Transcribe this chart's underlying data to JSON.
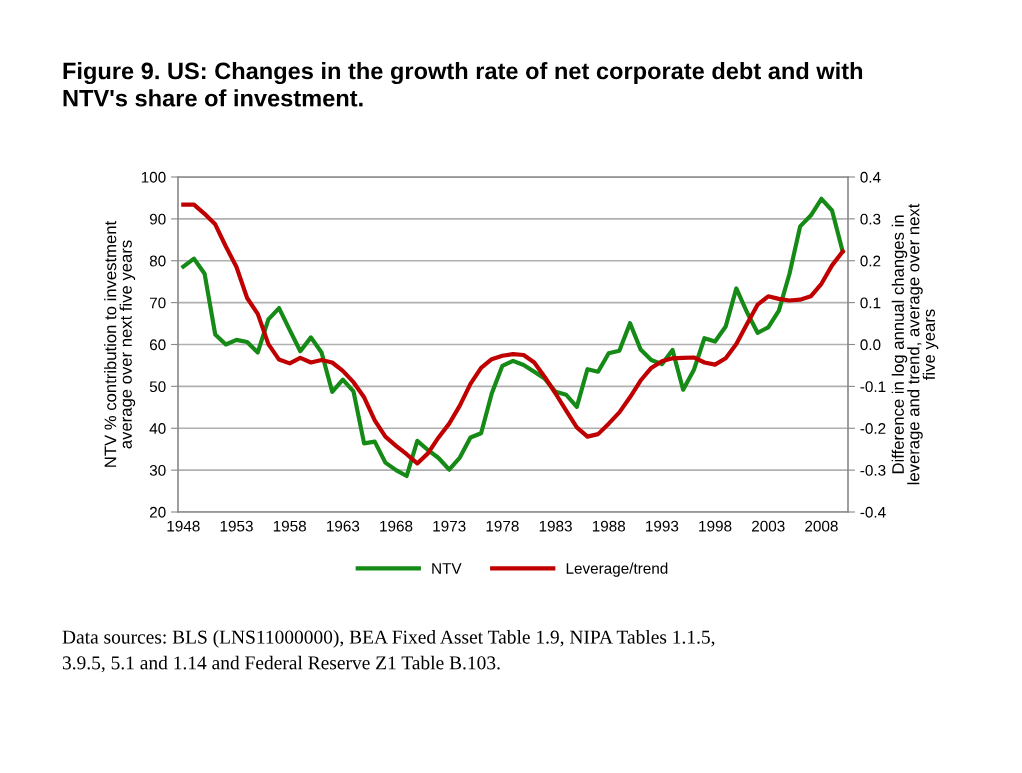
{
  "chart_data": {
    "type": "line",
    "title": "Figure 9. US: Changes in the growth rate of net corporate debt and with\nNTV's share of investment.",
    "ylabel": "NTV % contribution to investment\naverage over next five years",
    "y2label": "Difference in log annual changes in\nleverage and trend, average over next\nfive years",
    "categories": [
      "1948",
      null,
      null,
      null,
      null,
      "1953",
      null,
      null,
      null,
      null,
      "1958",
      null,
      null,
      null,
      null,
      "1963",
      null,
      null,
      null,
      null,
      "1968",
      null,
      null,
      null,
      null,
      "1973",
      null,
      null,
      null,
      null,
      "1978",
      null,
      null,
      null,
      null,
      "1983",
      null,
      null,
      null,
      null,
      "1988",
      null,
      null,
      null,
      null,
      "1993",
      null,
      null,
      null,
      null,
      "1998",
      null,
      null,
      null,
      null,
      "2003",
      null,
      null,
      null,
      null,
      "2008",
      null,
      null
    ],
    "series": [
      {
        "name": "NTV",
        "color": "#168a16",
        "values": [
          78.6,
          80.5,
          76.9,
          62.4,
          60.0,
          61.1,
          60.6,
          58.1,
          66.0,
          68.7,
          63.5,
          58.4,
          61.7,
          58.1,
          48.7,
          51.6,
          48.8,
          36.4,
          36.8,
          31.8,
          30.0,
          28.6,
          37.0,
          34.8,
          32.9,
          30.1,
          33.0,
          37.8,
          38.8,
          48.3,
          54.9,
          56.1,
          55.1,
          53.5,
          51.8,
          48.7,
          48.0,
          45.1,
          54.1,
          53.5,
          57.9,
          58.5,
          65.1,
          58.8,
          56.3,
          55.3,
          58.7,
          49.2,
          53.9,
          61.5,
          60.7,
          64.3,
          73.4,
          67.7,
          62.8,
          64.1,
          68.1,
          76.9,
          88.2,
          90.8,
          94.8,
          92.0,
          82.2
        ]
      },
      {
        "name": "Leverage/trend",
        "color": "#c00000",
        "axis": "y2",
        "values": [
          0.334,
          0.334,
          0.312,
          0.287,
          0.234,
          0.185,
          0.111,
          0.073,
          0.001,
          -0.036,
          -0.045,
          -0.032,
          -0.043,
          -0.037,
          -0.043,
          -0.063,
          -0.09,
          -0.126,
          -0.181,
          -0.22,
          -0.242,
          -0.262,
          -0.284,
          -0.26,
          -0.222,
          -0.189,
          -0.146,
          -0.094,
          -0.056,
          -0.035,
          -0.027,
          -0.023,
          -0.025,
          -0.043,
          -0.078,
          -0.117,
          -0.158,
          -0.198,
          -0.22,
          -0.214,
          -0.189,
          -0.162,
          -0.126,
          -0.086,
          -0.056,
          -0.04,
          -0.033,
          -0.032,
          -0.031,
          -0.043,
          -0.048,
          -0.033,
          0.001,
          0.049,
          0.095,
          0.115,
          0.109,
          0.105,
          0.107,
          0.115,
          0.145,
          0.189,
          0.222
        ]
      }
    ],
    "ylim": [
      20,
      100
    ],
    "yticks": [
      20,
      30,
      40,
      50,
      60,
      70,
      80,
      90,
      100
    ],
    "y2lim": [
      -0.4,
      0.4
    ],
    "y2ticks": [
      -0.4,
      -0.3,
      -0.2,
      -0.1,
      {
        "value": 0,
        "label": "0.0"
      },
      0.1,
      0.2,
      0.3,
      0.4
    ],
    "grid": "y",
    "legend": "bottom",
    "marker": "none",
    "line_style": "solid",
    "annotations": [
      "Data sources: BLS (LNS11000000), BEA Fixed Asset Table 1.9, NIPA Tables 1.1.5,\n3.9.5, 5.1 and 1.14 and Federal Reserve Z1 Table B.103."
    ]
  }
}
